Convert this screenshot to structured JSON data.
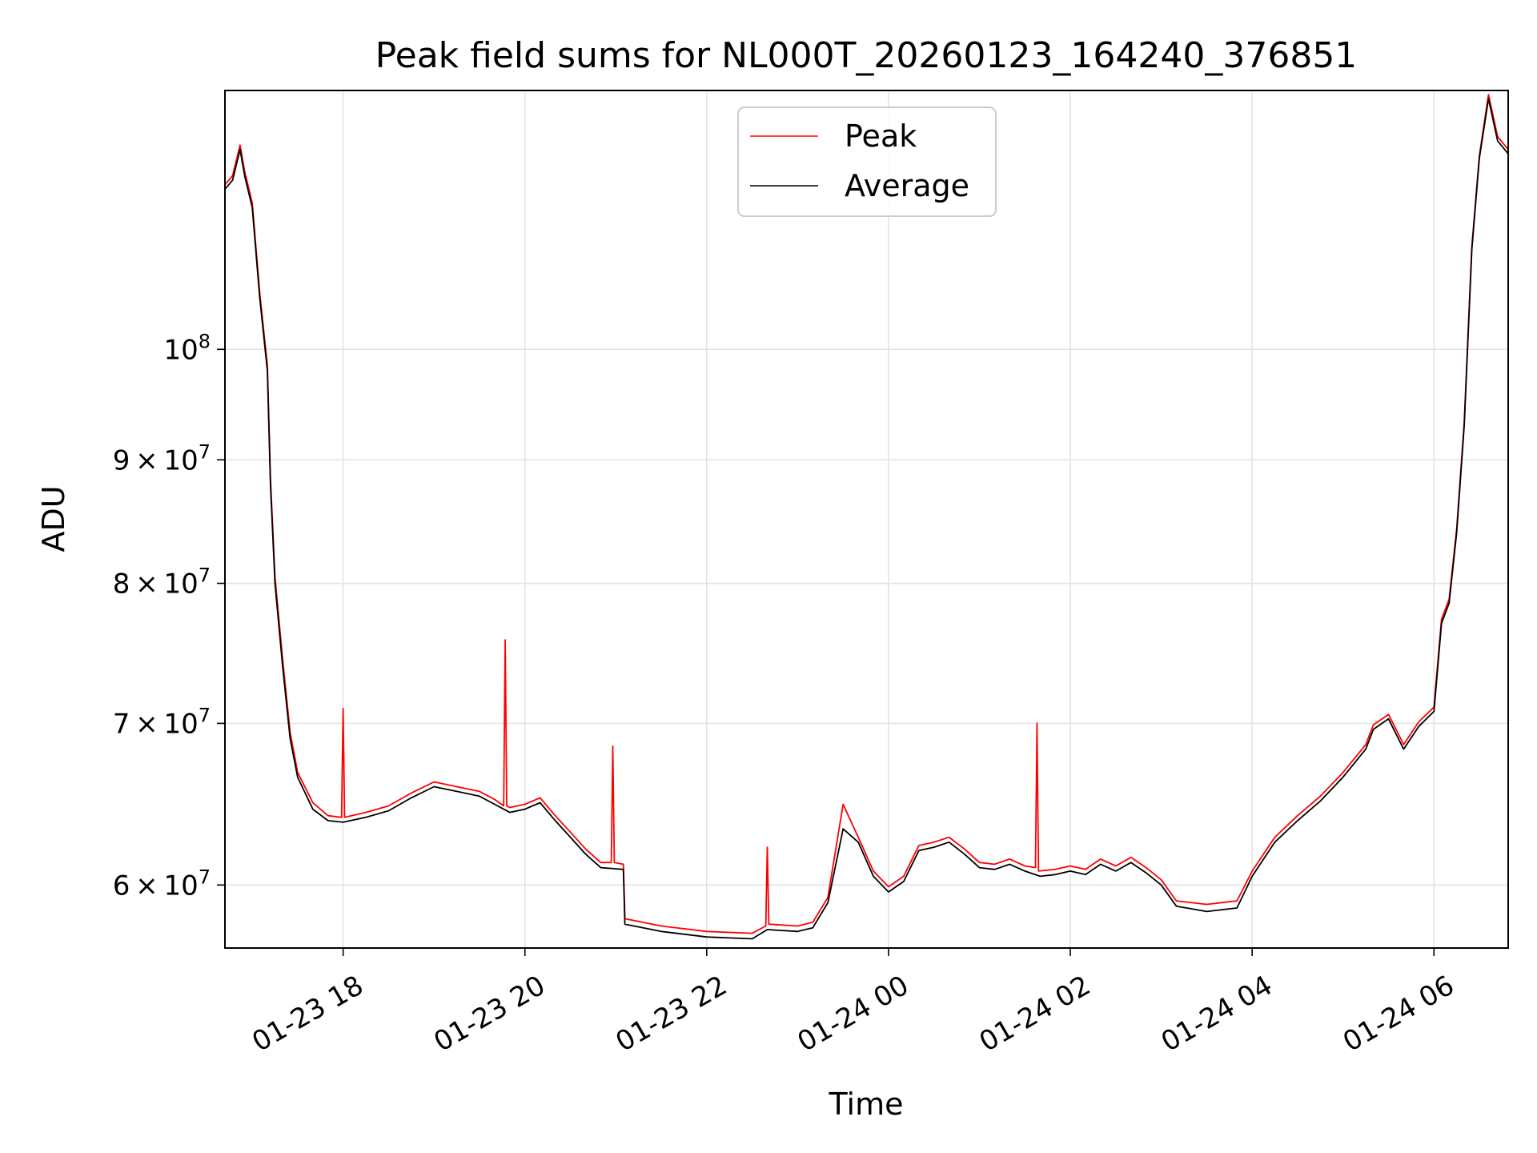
{
  "chart_data": {
    "type": "line",
    "title": "Peak field sums for NL000T_20260123_164240_376851",
    "xlabel": "Time",
    "ylabel": "ADU",
    "y_scale": "log",
    "ylim": [
      56500000,
      128000000
    ],
    "xlim": [
      "2026-01-23 16:42",
      "2026-01-24 06:49"
    ],
    "grid": true,
    "legend_position": "top-center",
    "colors": {
      "Peak": "#ff0000",
      "Average": "#000000",
      "grid": "#e3e3e3"
    },
    "x_ticks": [
      {
        "t": "2026-01-23 18:00",
        "label": "01-23 18"
      },
      {
        "t": "2026-01-23 20:00",
        "label": "01-23 20"
      },
      {
        "t": "2026-01-23 22:00",
        "label": "01-23 22"
      },
      {
        "t": "2026-01-24 00:00",
        "label": "01-24 00"
      },
      {
        "t": "2026-01-24 02:00",
        "label": "01-24 02"
      },
      {
        "t": "2026-01-24 04:00",
        "label": "01-24 04"
      },
      {
        "t": "2026-01-24 06:00",
        "label": "01-24 06"
      }
    ],
    "y_ticks": [
      {
        "value": 60000000,
        "mant": "6",
        "exp": "7"
      },
      {
        "value": 70000000,
        "mant": "7",
        "exp": "7"
      },
      {
        "value": 80000000,
        "mant": "8",
        "exp": "7"
      },
      {
        "value": 90000000,
        "mant": "9",
        "exp": "7"
      },
      {
        "value": 100000000,
        "mant": "",
        "exp": "8"
      }
    ],
    "series": [
      {
        "name": "Average",
        "points": [
          [
            "2026-01-23 16:42",
            116500000
          ],
          [
            "2026-01-23 16:47",
            117500000
          ],
          [
            "2026-01-23 16:52",
            121000000
          ],
          [
            "2026-01-23 16:55",
            118000000
          ],
          [
            "2026-01-23 17:00",
            114500000
          ],
          [
            "2026-01-23 17:05",
            105000000
          ],
          [
            "2026-01-23 17:10",
            98000000
          ],
          [
            "2026-01-23 17:12",
            88000000
          ],
          [
            "2026-01-23 17:15",
            80000000
          ],
          [
            "2026-01-23 17:20",
            74000000
          ],
          [
            "2026-01-23 17:25",
            69000000
          ],
          [
            "2026-01-23 17:30",
            66500000
          ],
          [
            "2026-01-23 17:40",
            64500000
          ],
          [
            "2026-01-23 17:50",
            63800000
          ],
          [
            "2026-01-23 18:00",
            63700000
          ],
          [
            "2026-01-23 18:15",
            64000000
          ],
          [
            "2026-01-23 18:30",
            64400000
          ],
          [
            "2026-01-23 18:45",
            65200000
          ],
          [
            "2026-01-23 19:00",
            65900000
          ],
          [
            "2026-01-23 19:15",
            65600000
          ],
          [
            "2026-01-23 19:30",
            65300000
          ],
          [
            "2026-01-23 19:40",
            64800000
          ],
          [
            "2026-01-23 19:50",
            64300000
          ],
          [
            "2026-01-23 20:00",
            64500000
          ],
          [
            "2026-01-23 20:10",
            64900000
          ],
          [
            "2026-01-23 20:20",
            63800000
          ],
          [
            "2026-01-23 20:30",
            62800000
          ],
          [
            "2026-01-23 20:40",
            61800000
          ],
          [
            "2026-01-23 20:50",
            61000000
          ],
          [
            "2026-01-23 21:05",
            60900000
          ],
          [
            "2026-01-23 21:06",
            57800000
          ],
          [
            "2026-01-23 21:30",
            57400000
          ],
          [
            "2026-01-23 22:00",
            57100000
          ],
          [
            "2026-01-23 22:30",
            57000000
          ],
          [
            "2026-01-23 22:40",
            57500000
          ],
          [
            "2026-01-23 23:00",
            57400000
          ],
          [
            "2026-01-23 23:10",
            57600000
          ],
          [
            "2026-01-23 23:20",
            59000000
          ],
          [
            "2026-01-23 23:30",
            63300000
          ],
          [
            "2026-01-23 23:40",
            62500000
          ],
          [
            "2026-01-23 23:50",
            60500000
          ],
          [
            "2026-01-24 00:00",
            59600000
          ],
          [
            "2026-01-24 00:10",
            60200000
          ],
          [
            "2026-01-24 00:20",
            62000000
          ],
          [
            "2026-01-24 00:30",
            62200000
          ],
          [
            "2026-01-24 00:40",
            62500000
          ],
          [
            "2026-01-24 00:50",
            61800000
          ],
          [
            "2026-01-24 01:00",
            61000000
          ],
          [
            "2026-01-24 01:10",
            60900000
          ],
          [
            "2026-01-24 01:20",
            61200000
          ],
          [
            "2026-01-24 01:30",
            60800000
          ],
          [
            "2026-01-24 01:40",
            60500000
          ],
          [
            "2026-01-24 01:50",
            60600000
          ],
          [
            "2026-01-24 02:00",
            60800000
          ],
          [
            "2026-01-24 02:10",
            60600000
          ],
          [
            "2026-01-24 02:20",
            61200000
          ],
          [
            "2026-01-24 02:30",
            60800000
          ],
          [
            "2026-01-24 02:40",
            61300000
          ],
          [
            "2026-01-24 02:50",
            60700000
          ],
          [
            "2026-01-24 03:00",
            60000000
          ],
          [
            "2026-01-24 03:10",
            58800000
          ],
          [
            "2026-01-24 03:30",
            58500000
          ],
          [
            "2026-01-24 03:50",
            58700000
          ],
          [
            "2026-01-24 04:00",
            60500000
          ],
          [
            "2026-01-24 04:15",
            62500000
          ],
          [
            "2026-01-24 04:30",
            63800000
          ],
          [
            "2026-01-24 04:45",
            65000000
          ],
          [
            "2026-01-24 05:00",
            66500000
          ],
          [
            "2026-01-24 05:15",
            68300000
          ],
          [
            "2026-01-24 05:20",
            69600000
          ],
          [
            "2026-01-24 05:30",
            70300000
          ],
          [
            "2026-01-24 05:40",
            68300000
          ],
          [
            "2026-01-24 05:50",
            69800000
          ],
          [
            "2026-01-24 06:00",
            70800000
          ],
          [
            "2026-01-24 06:05",
            77000000
          ],
          [
            "2026-01-24 06:10",
            78500000
          ],
          [
            "2026-01-24 06:15",
            84000000
          ],
          [
            "2026-01-24 06:20",
            93000000
          ],
          [
            "2026-01-24 06:25",
            110000000
          ],
          [
            "2026-01-24 06:30",
            120000000
          ],
          [
            "2026-01-24 06:36",
            127000000
          ],
          [
            "2026-01-24 06:42",
            122000000
          ],
          [
            "2026-01-24 06:49",
            120500000
          ]
        ]
      },
      {
        "name": "Peak",
        "points": [
          [
            "2026-01-23 16:42",
            117000000
          ],
          [
            "2026-01-23 16:47",
            118000000
          ],
          [
            "2026-01-23 16:52",
            121500000
          ],
          [
            "2026-01-23 16:55",
            118500000
          ],
          [
            "2026-01-23 17:00",
            115000000
          ],
          [
            "2026-01-23 17:05",
            105500000
          ],
          [
            "2026-01-23 17:10",
            98500000
          ],
          [
            "2026-01-23 17:12",
            88500000
          ],
          [
            "2026-01-23 17:15",
            80500000
          ],
          [
            "2026-01-23 17:20",
            74500000
          ],
          [
            "2026-01-23 17:25",
            69400000
          ],
          [
            "2026-01-23 17:30",
            66800000
          ],
          [
            "2026-01-23 17:40",
            64900000
          ],
          [
            "2026-01-23 17:50",
            64100000
          ],
          [
            "2026-01-23 17:59",
            64000000
          ],
          [
            "2026-01-23 18:00",
            71000000
          ],
          [
            "2026-01-23 18:01",
            64000000
          ],
          [
            "2026-01-23 18:15",
            64300000
          ],
          [
            "2026-01-23 18:30",
            64700000
          ],
          [
            "2026-01-23 18:45",
            65500000
          ],
          [
            "2026-01-23 19:00",
            66200000
          ],
          [
            "2026-01-23 19:15",
            65900000
          ],
          [
            "2026-01-23 19:30",
            65600000
          ],
          [
            "2026-01-23 19:40",
            65100000
          ],
          [
            "2026-01-23 19:46",
            64700000
          ],
          [
            "2026-01-23 19:47",
            75800000
          ],
          [
            "2026-01-23 19:48",
            64700000
          ],
          [
            "2026-01-23 19:50",
            64600000
          ],
          [
            "2026-01-23 20:00",
            64800000
          ],
          [
            "2026-01-23 20:10",
            65200000
          ],
          [
            "2026-01-23 20:20",
            64100000
          ],
          [
            "2026-01-23 20:30",
            63100000
          ],
          [
            "2026-01-23 20:40",
            62100000
          ],
          [
            "2026-01-23 20:50",
            61300000
          ],
          [
            "2026-01-23 20:57",
            61300000
          ],
          [
            "2026-01-23 20:58",
            68500000
          ],
          [
            "2026-01-23 20:59",
            61300000
          ],
          [
            "2026-01-23 21:05",
            61200000
          ],
          [
            "2026-01-23 21:06",
            58100000
          ],
          [
            "2026-01-23 21:30",
            57700000
          ],
          [
            "2026-01-23 22:00",
            57400000
          ],
          [
            "2026-01-23 22:30",
            57300000
          ],
          [
            "2026-01-23 22:39",
            57700000
          ],
          [
            "2026-01-23 22:40",
            62200000
          ],
          [
            "2026-01-23 22:41",
            57800000
          ],
          [
            "2026-01-23 23:00",
            57700000
          ],
          [
            "2026-01-23 23:10",
            57900000
          ],
          [
            "2026-01-23 23:20",
            59300000
          ],
          [
            "2026-01-23 23:30",
            64800000
          ],
          [
            "2026-01-23 23:40",
            62800000
          ],
          [
            "2026-01-23 23:50",
            60800000
          ],
          [
            "2026-01-24 00:00",
            59900000
          ],
          [
            "2026-01-24 00:10",
            60500000
          ],
          [
            "2026-01-24 00:20",
            62300000
          ],
          [
            "2026-01-24 00:30",
            62500000
          ],
          [
            "2026-01-24 00:40",
            62800000
          ],
          [
            "2026-01-24 00:50",
            62100000
          ],
          [
            "2026-01-24 01:00",
            61300000
          ],
          [
            "2026-01-24 01:10",
            61200000
          ],
          [
            "2026-01-24 01:20",
            61500000
          ],
          [
            "2026-01-24 01:30",
            61100000
          ],
          [
            "2026-01-24 01:37",
            61000000
          ],
          [
            "2026-01-24 01:38",
            70000000
          ],
          [
            "2026-01-24 01:39",
            60800000
          ],
          [
            "2026-01-24 01:50",
            60900000
          ],
          [
            "2026-01-24 02:00",
            61100000
          ],
          [
            "2026-01-24 02:10",
            60900000
          ],
          [
            "2026-01-24 02:20",
            61500000
          ],
          [
            "2026-01-24 02:30",
            61100000
          ],
          [
            "2026-01-24 02:40",
            61600000
          ],
          [
            "2026-01-24 02:50",
            61000000
          ],
          [
            "2026-01-24 03:00",
            60300000
          ],
          [
            "2026-01-24 03:10",
            59100000
          ],
          [
            "2026-01-24 03:30",
            58900000
          ],
          [
            "2026-01-24 03:50",
            59100000
          ],
          [
            "2026-01-24 04:00",
            60800000
          ],
          [
            "2026-01-24 04:15",
            62800000
          ],
          [
            "2026-01-24 04:30",
            64100000
          ],
          [
            "2026-01-24 04:45",
            65300000
          ],
          [
            "2026-01-24 05:00",
            66800000
          ],
          [
            "2026-01-24 05:15",
            68600000
          ],
          [
            "2026-01-24 05:20",
            69900000
          ],
          [
            "2026-01-24 05:30",
            70600000
          ],
          [
            "2026-01-24 05:40",
            68600000
          ],
          [
            "2026-01-24 05:50",
            70100000
          ],
          [
            "2026-01-24 06:00",
            71100000
          ],
          [
            "2026-01-24 06:05",
            77300000
          ],
          [
            "2026-01-24 06:10",
            78800000
          ],
          [
            "2026-01-24 06:15",
            84300000
          ],
          [
            "2026-01-24 06:20",
            93300000
          ],
          [
            "2026-01-24 06:25",
            110300000
          ],
          [
            "2026-01-24 06:30",
            120300000
          ],
          [
            "2026-01-24 06:36",
            127500000
          ],
          [
            "2026-01-24 06:42",
            122500000
          ],
          [
            "2026-01-24 06:49",
            121000000
          ]
        ]
      }
    ]
  }
}
